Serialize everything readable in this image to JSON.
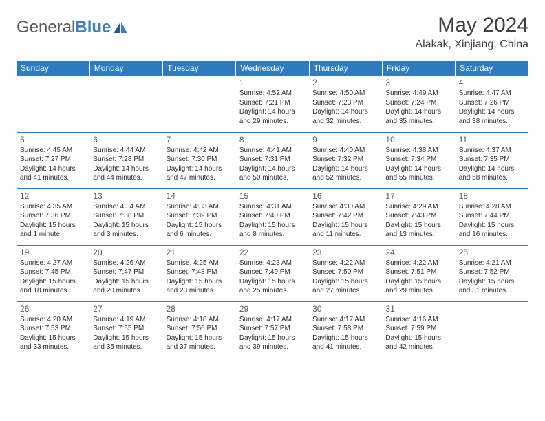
{
  "logo": {
    "textGray": "General",
    "textBlue": "Blue"
  },
  "title": "May 2024",
  "location": "Alakak, Xinjiang, China",
  "colors": {
    "headerBg": "#2f7bbf",
    "headerText": "#ffffff",
    "border": "#2f7bbf"
  },
  "weekdays": [
    "Sunday",
    "Monday",
    "Tuesday",
    "Wednesday",
    "Thursday",
    "Friday",
    "Saturday"
  ],
  "weeks": [
    [
      null,
      null,
      null,
      {
        "n": "1",
        "sr": "4:52 AM",
        "ss": "7:21 PM",
        "dl": "14 hours and 29 minutes."
      },
      {
        "n": "2",
        "sr": "4:50 AM",
        "ss": "7:23 PM",
        "dl": "14 hours and 32 minutes."
      },
      {
        "n": "3",
        "sr": "4:49 AM",
        "ss": "7:24 PM",
        "dl": "14 hours and 35 minutes."
      },
      {
        "n": "4",
        "sr": "4:47 AM",
        "ss": "7:26 PM",
        "dl": "14 hours and 38 minutes."
      }
    ],
    [
      {
        "n": "5",
        "sr": "4:45 AM",
        "ss": "7:27 PM",
        "dl": "14 hours and 41 minutes."
      },
      {
        "n": "6",
        "sr": "4:44 AM",
        "ss": "7:28 PM",
        "dl": "14 hours and 44 minutes."
      },
      {
        "n": "7",
        "sr": "4:42 AM",
        "ss": "7:30 PM",
        "dl": "14 hours and 47 minutes."
      },
      {
        "n": "8",
        "sr": "4:41 AM",
        "ss": "7:31 PM",
        "dl": "14 hours and 50 minutes."
      },
      {
        "n": "9",
        "sr": "4:40 AM",
        "ss": "7:32 PM",
        "dl": "14 hours and 52 minutes."
      },
      {
        "n": "10",
        "sr": "4:38 AM",
        "ss": "7:34 PM",
        "dl": "14 hours and 55 minutes."
      },
      {
        "n": "11",
        "sr": "4:37 AM",
        "ss": "7:35 PM",
        "dl": "14 hours and 58 minutes."
      }
    ],
    [
      {
        "n": "12",
        "sr": "4:35 AM",
        "ss": "7:36 PM",
        "dl": "15 hours and 1 minute."
      },
      {
        "n": "13",
        "sr": "4:34 AM",
        "ss": "7:38 PM",
        "dl": "15 hours and 3 minutes."
      },
      {
        "n": "14",
        "sr": "4:33 AM",
        "ss": "7:39 PM",
        "dl": "15 hours and 6 minutes."
      },
      {
        "n": "15",
        "sr": "4:31 AM",
        "ss": "7:40 PM",
        "dl": "15 hours and 8 minutes."
      },
      {
        "n": "16",
        "sr": "4:30 AM",
        "ss": "7:42 PM",
        "dl": "15 hours and 11 minutes."
      },
      {
        "n": "17",
        "sr": "4:29 AM",
        "ss": "7:43 PM",
        "dl": "15 hours and 13 minutes."
      },
      {
        "n": "18",
        "sr": "4:28 AM",
        "ss": "7:44 PM",
        "dl": "15 hours and 16 minutes."
      }
    ],
    [
      {
        "n": "19",
        "sr": "4:27 AM",
        "ss": "7:45 PM",
        "dl": "15 hours and 18 minutes."
      },
      {
        "n": "20",
        "sr": "4:26 AM",
        "ss": "7:47 PM",
        "dl": "15 hours and 20 minutes."
      },
      {
        "n": "21",
        "sr": "4:25 AM",
        "ss": "7:48 PM",
        "dl": "15 hours and 23 minutes."
      },
      {
        "n": "22",
        "sr": "4:23 AM",
        "ss": "7:49 PM",
        "dl": "15 hours and 25 minutes."
      },
      {
        "n": "23",
        "sr": "4:22 AM",
        "ss": "7:50 PM",
        "dl": "15 hours and 27 minutes."
      },
      {
        "n": "24",
        "sr": "4:22 AM",
        "ss": "7:51 PM",
        "dl": "15 hours and 29 minutes."
      },
      {
        "n": "25",
        "sr": "4:21 AM",
        "ss": "7:52 PM",
        "dl": "15 hours and 31 minutes."
      }
    ],
    [
      {
        "n": "26",
        "sr": "4:20 AM",
        "ss": "7:53 PM",
        "dl": "15 hours and 33 minutes."
      },
      {
        "n": "27",
        "sr": "4:19 AM",
        "ss": "7:55 PM",
        "dl": "15 hours and 35 minutes."
      },
      {
        "n": "28",
        "sr": "4:18 AM",
        "ss": "7:56 PM",
        "dl": "15 hours and 37 minutes."
      },
      {
        "n": "29",
        "sr": "4:17 AM",
        "ss": "7:57 PM",
        "dl": "15 hours and 39 minutes."
      },
      {
        "n": "30",
        "sr": "4:17 AM",
        "ss": "7:58 PM",
        "dl": "15 hours and 41 minutes."
      },
      {
        "n": "31",
        "sr": "4:16 AM",
        "ss": "7:59 PM",
        "dl": "15 hours and 42 minutes."
      },
      null
    ]
  ],
  "labels": {
    "sunrise": "Sunrise:",
    "sunset": "Sunset:",
    "daylight": "Daylight:"
  }
}
